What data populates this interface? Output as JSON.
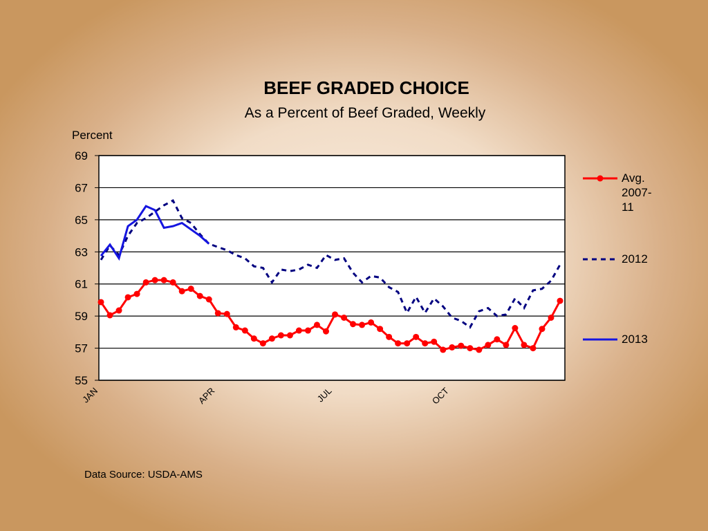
{
  "chart_data": {
    "type": "line",
    "title": "BEEF  GRADED  CHOICE",
    "subtitle": "As a Percent of Beef Graded, Weekly",
    "ylabel": "Percent",
    "source": "Data Source: USDA-AMS",
    "categories": [
      "JAN",
      null,
      null,
      null,
      null,
      null,
      null,
      null,
      null,
      null,
      null,
      null,
      null,
      "APR",
      null,
      null,
      null,
      null,
      null,
      null,
      null,
      null,
      null,
      null,
      null,
      null,
      "JUL",
      null,
      null,
      null,
      null,
      null,
      null,
      null,
      null,
      null,
      null,
      null,
      null,
      "OCT",
      null,
      null,
      null,
      null,
      null,
      null,
      null,
      null,
      null,
      null,
      null,
      null
    ],
    "ylim": [
      55,
      69
    ],
    "yticks": [
      55,
      57,
      59,
      61,
      63,
      65,
      67,
      69
    ],
    "grid": true,
    "legend": "right",
    "series": [
      {
        "name": "Avg. 2007-11",
        "color": "#ff0000",
        "style": "solid",
        "marker": "circle",
        "values": [
          59.87,
          59.05,
          59.35,
          60.17,
          60.38,
          61.1,
          61.24,
          61.24,
          61.1,
          60.55,
          60.7,
          60.25,
          60.04,
          59.18,
          59.13,
          58.3,
          58.1,
          57.6,
          57.3,
          57.6,
          57.8,
          57.8,
          58.1,
          58.1,
          58.45,
          58.05,
          59.1,
          58.9,
          58.5,
          58.45,
          58.6,
          58.2,
          57.7,
          57.3,
          57.3,
          57.7,
          57.3,
          57.4,
          56.9,
          57.05,
          57.15,
          57.0,
          56.9,
          57.2,
          57.55,
          57.2,
          58.25,
          57.2,
          57.0,
          58.2,
          58.9,
          59.95
        ]
      },
      {
        "name": "2012",
        "color": "#000080",
        "style": "dashed",
        "values": [
          62.5,
          63.4,
          62.8,
          64.0,
          64.8,
          65.1,
          65.5,
          65.9,
          66.2,
          65.1,
          64.8,
          64.1,
          63.5,
          63.3,
          63.1,
          62.8,
          62.6,
          62.1,
          62.0,
          61.1,
          61.9,
          61.8,
          61.9,
          62.2,
          62.0,
          62.8,
          62.5,
          62.6,
          61.7,
          61.1,
          61.5,
          61.4,
          60.8,
          60.5,
          59.2,
          60.2,
          59.2,
          60.1,
          59.6,
          58.9,
          58.7,
          58.3,
          59.3,
          59.5,
          59.0,
          59.1,
          60.1,
          59.5,
          60.6,
          60.7,
          61.2,
          62.2
        ]
      },
      {
        "name": "2013",
        "color": "#1515e0",
        "style": "solid",
        "values": [
          62.75,
          63.45,
          62.6,
          64.6,
          65.0,
          65.85,
          65.6,
          64.5,
          64.6,
          64.8,
          64.4,
          64.0,
          63.5,
          null,
          null,
          null,
          null,
          null,
          null,
          null,
          null,
          null,
          null,
          null,
          null,
          null,
          null,
          null,
          null,
          null,
          null,
          null,
          null,
          null,
          null,
          null,
          null,
          null,
          null,
          null,
          null,
          null,
          null,
          null,
          null,
          null,
          null,
          null,
          null,
          null,
          null,
          null
        ]
      }
    ]
  }
}
